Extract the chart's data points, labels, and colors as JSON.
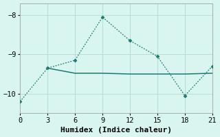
{
  "xlabel": "Humidex (Indice chaleur)",
  "bg_color": "#d8f5f0",
  "line_color": "#1a7a6e",
  "line1_x": [
    0,
    3,
    6,
    9,
    12,
    15,
    18,
    21
  ],
  "line1_y": [
    -10.2,
    -9.35,
    -9.15,
    -8.05,
    -8.65,
    -9.05,
    -10.05,
    -9.3
  ],
  "line2_x": [
    3,
    6,
    9,
    12,
    15,
    18,
    21
  ],
  "line2_y": [
    -9.35,
    -9.48,
    -9.48,
    -9.5,
    -9.5,
    -9.5,
    -9.48
  ],
  "xlim": [
    0,
    21
  ],
  "ylim": [
    -10.5,
    -7.7
  ],
  "yticks": [
    -10,
    -9,
    -8
  ],
  "xticks": [
    0,
    3,
    6,
    9,
    12,
    15,
    18,
    21
  ],
  "grid_color": "#b8ddd8",
  "fontsize": 7.5,
  "xlabel_fontsize": 8,
  "linewidth1": 0.9,
  "linewidth2": 1.1,
  "marker_size": 2.5
}
